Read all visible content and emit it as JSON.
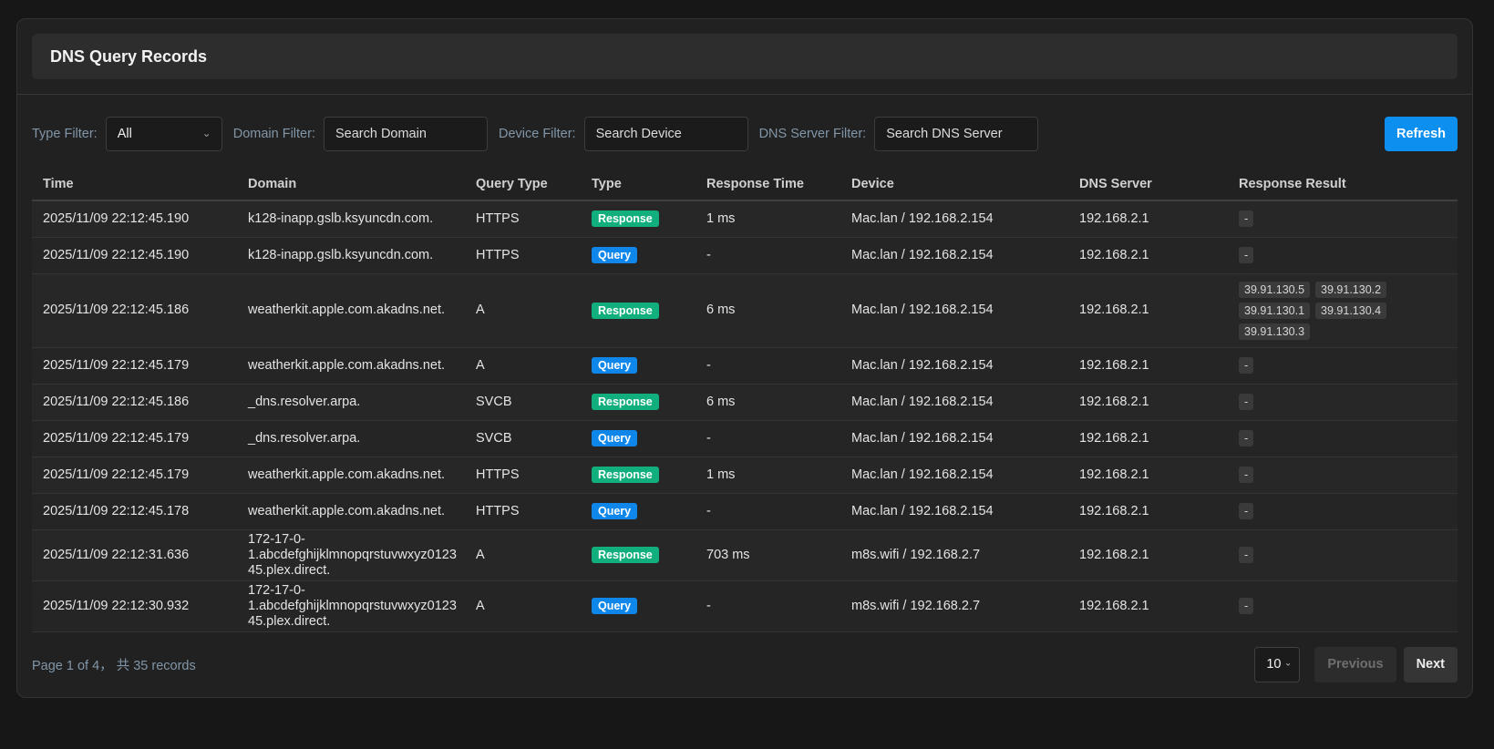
{
  "panel": {
    "title": "DNS Query Records"
  },
  "filters": {
    "type": {
      "label": "Type Filter:",
      "value": "All"
    },
    "domain": {
      "label": "Domain Filter:",
      "placeholder": "Search Domain"
    },
    "device": {
      "label": "Device Filter:",
      "placeholder": "Search Device"
    },
    "dns_server": {
      "label": "DNS Server Filter:",
      "placeholder": "Search DNS Server"
    },
    "refresh_label": "Refresh"
  },
  "table": {
    "columns": [
      "Time",
      "Domain",
      "Query Type",
      "Type",
      "Response Time",
      "Device",
      "DNS Server",
      "Response Result"
    ],
    "rows": [
      {
        "time": "2025/11/09 22:12:45.190",
        "domain": "k128-inapp.gslb.ksyuncdn.com.",
        "query_type": "HTTPS",
        "type": "Response",
        "response_time": "1 ms",
        "device": "Mac.lan / 192.168.2.154",
        "dns_server": "192.168.2.1",
        "response_result": [
          "-"
        ]
      },
      {
        "time": "2025/11/09 22:12:45.190",
        "domain": "k128-inapp.gslb.ksyuncdn.com.",
        "query_type": "HTTPS",
        "type": "Query",
        "response_time": "-",
        "device": "Mac.lan / 192.168.2.154",
        "dns_server": "192.168.2.1",
        "response_result": [
          "-"
        ]
      },
      {
        "time": "2025/11/09 22:12:45.186",
        "domain": "weatherkit.apple.com.akadns.net.",
        "query_type": "A",
        "type": "Response",
        "response_time": "6 ms",
        "device": "Mac.lan / 192.168.2.154",
        "dns_server": "192.168.2.1",
        "response_result": [
          "39.91.130.5",
          "39.91.130.2",
          "39.91.130.1",
          "39.91.130.4",
          "39.91.130.3"
        ]
      },
      {
        "time": "2025/11/09 22:12:45.179",
        "domain": "weatherkit.apple.com.akadns.net.",
        "query_type": "A",
        "type": "Query",
        "response_time": "-",
        "device": "Mac.lan / 192.168.2.154",
        "dns_server": "192.168.2.1",
        "response_result": [
          "-"
        ]
      },
      {
        "time": "2025/11/09 22:12:45.186",
        "domain": "_dns.resolver.arpa.",
        "query_type": "SVCB",
        "type": "Response",
        "response_time": "6 ms",
        "device": "Mac.lan / 192.168.2.154",
        "dns_server": "192.168.2.1",
        "response_result": [
          "-"
        ]
      },
      {
        "time": "2025/11/09 22:12:45.179",
        "domain": "_dns.resolver.arpa.",
        "query_type": "SVCB",
        "type": "Query",
        "response_time": "-",
        "device": "Mac.lan / 192.168.2.154",
        "dns_server": "192.168.2.1",
        "response_result": [
          "-"
        ]
      },
      {
        "time": "2025/11/09 22:12:45.179",
        "domain": "weatherkit.apple.com.akadns.net.",
        "query_type": "HTTPS",
        "type": "Response",
        "response_time": "1 ms",
        "device": "Mac.lan / 192.168.2.154",
        "dns_server": "192.168.2.1",
        "response_result": [
          "-"
        ]
      },
      {
        "time": "2025/11/09 22:12:45.178",
        "domain": "weatherkit.apple.com.akadns.net.",
        "query_type": "HTTPS",
        "type": "Query",
        "response_time": "-",
        "device": "Mac.lan / 192.168.2.154",
        "dns_server": "192.168.2.1",
        "response_result": [
          "-"
        ]
      },
      {
        "time": "2025/11/09 22:12:31.636",
        "domain": "172-17-0-1.abcdefghijklmnopqrstuvwxyz012345.plex.direct.",
        "query_type": "A",
        "type": "Response",
        "response_time": "703 ms",
        "device": "m8s.wifi / 192.168.2.7",
        "dns_server": "192.168.2.1",
        "response_result": [
          "-"
        ]
      },
      {
        "time": "2025/11/09 22:12:30.932",
        "domain": "172-17-0-1.abcdefghijklmnopqrstuvwxyz012345.plex.direct.",
        "query_type": "A",
        "type": "Query",
        "response_time": "-",
        "device": "m8s.wifi / 192.168.2.7",
        "dns_server": "192.168.2.1",
        "response_result": [
          "-"
        ]
      }
    ]
  },
  "pagination": {
    "summary": "Page 1 of 4， 共 35 records",
    "page_size": "10",
    "previous_label": "Previous",
    "next_label": "Next"
  },
  "colors": {
    "accent_blue": "#0d99ff",
    "badge_response_green": "#11af7d",
    "badge_query_blue": "#0e86ea",
    "panel_bg": "#212121",
    "label_blue_gray": "#8196a8"
  }
}
